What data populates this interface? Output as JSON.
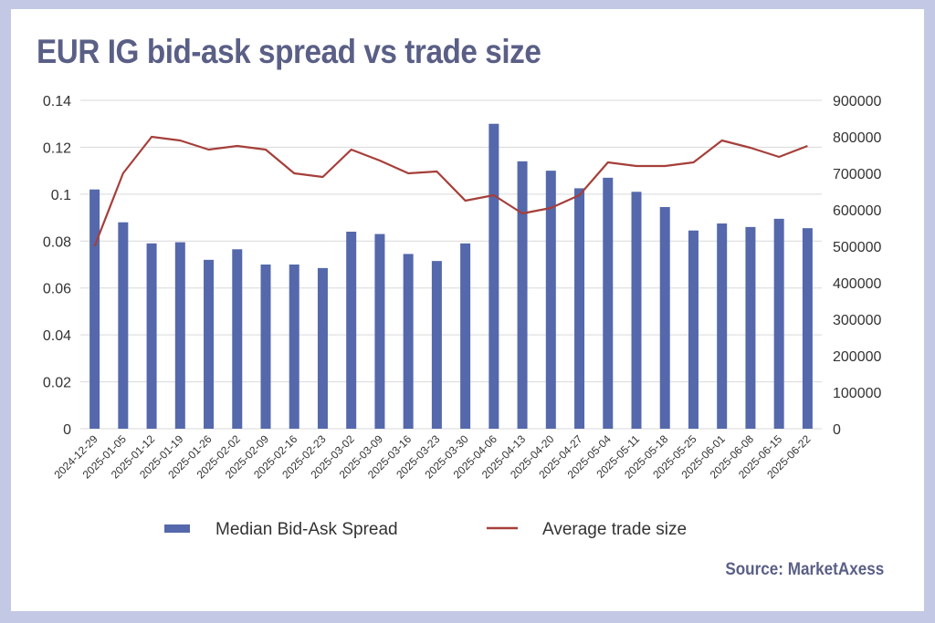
{
  "colors": {
    "bar": "#5468ab",
    "line": "#a53f3a",
    "title": "#5a5f86",
    "frame": "#c3c8e4",
    "grid": "#d9d9d9"
  },
  "source": "Source: MarketAxess",
  "chart_data": {
    "type": "bar",
    "title": "EUR IG bid-ask spread vs trade size",
    "categories": [
      "2024-12-29",
      "2025-01-05",
      "2025-01-12",
      "2025-01-19",
      "2025-01-26",
      "2025-02-02",
      "2025-02-09",
      "2025-02-16",
      "2025-02-23",
      "2025-03-02",
      "2025-03-09",
      "2025-03-16",
      "2025-03-23",
      "2025-03-30",
      "2025-04-06",
      "2025-04-13",
      "2025-04-20",
      "2025-04-27",
      "2025-05-04",
      "2025-05-11",
      "2025-05-18",
      "2025-05-25",
      "2025-06-01",
      "2025-06-08",
      "2025-06-15",
      "2025-06-22"
    ],
    "y_left": {
      "ticks": [
        "0",
        "0.02",
        "0.04",
        "0.06",
        "0.08",
        "0.1",
        "0.12",
        "0.14"
      ],
      "lim": [
        0,
        0.14
      ]
    },
    "y_right": {
      "ticks": [
        "0",
        "100000",
        "200000",
        "300000",
        "400000",
        "500000",
        "600000",
        "700000",
        "800000",
        "900000"
      ],
      "lim": [
        0,
        900000
      ]
    },
    "grid": true,
    "legend_position": "bottom",
    "series": [
      {
        "name": "Median Bid-Ask Spread",
        "kind": "bar",
        "axis": "left",
        "values": [
          0.102,
          0.088,
          0.079,
          0.0795,
          0.072,
          0.0765,
          0.07,
          0.07,
          0.0685,
          0.084,
          0.083,
          0.0745,
          0.0715,
          0.079,
          0.13,
          0.114,
          0.11,
          0.1025,
          0.107,
          0.101,
          0.0945,
          0.0845,
          0.0875,
          0.086,
          0.0895,
          0.0855
        ]
      },
      {
        "name": "Average trade size",
        "kind": "line",
        "axis": "right",
        "values": [
          500000,
          700000,
          800000,
          790000,
          765000,
          775000,
          765000,
          700000,
          690000,
          765000,
          735000,
          700000,
          705000,
          625000,
          640000,
          590000,
          605000,
          640000,
          730000,
          720000,
          720000,
          730000,
          790000,
          770000,
          745000,
          775000
        ]
      }
    ]
  }
}
